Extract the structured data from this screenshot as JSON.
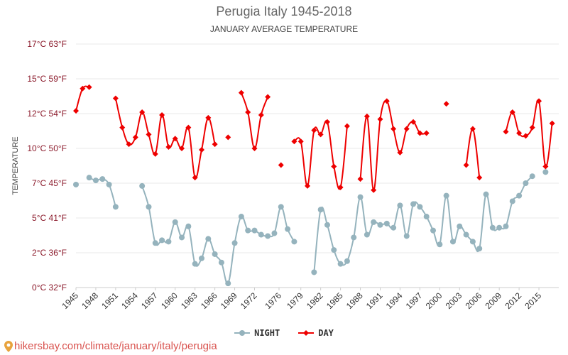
{
  "title": "Perugia Italy 1945-2018",
  "subtitle": "JANUARY AVERAGE TEMPERATURE",
  "watermark": "hikersbay.com/climate/january/italy/perugia",
  "colors": {
    "night": "#95b3bd",
    "day": "#ee0000",
    "grid": "#e8e8e8",
    "ytick": "#8b1a2b",
    "xtick": "#333333"
  },
  "chart_data": {
    "type": "line",
    "title": "Perugia Italy 1945-2018",
    "subtitle": "JANUARY AVERAGE TEMPERATURE",
    "ylabel": "TEMPERATURE",
    "xlabel": "",
    "ylim": [
      0,
      17.5
    ],
    "xlim": [
      1945,
      2018
    ],
    "legend": "bottom-center",
    "grid": true,
    "yticks": [
      {
        "value": 0,
        "label": "0°C 32°F"
      },
      {
        "value": 2.5,
        "label": "2°C 36°F"
      },
      {
        "value": 5,
        "label": "5°C 41°F"
      },
      {
        "value": 7.5,
        "label": "7°C 45°F"
      },
      {
        "value": 10,
        "label": "10°C 50°F"
      },
      {
        "value": 12.5,
        "label": "12°C 54°F"
      },
      {
        "value": 15,
        "label": "15°C 59°F"
      },
      {
        "value": 17.5,
        "label": "17°C 63°F"
      }
    ],
    "xticks": [
      {
        "value": 1945,
        "label": "1945"
      },
      {
        "value": 1948,
        "label": "1948"
      },
      {
        "value": 1951,
        "label": "1951"
      },
      {
        "value": 1954,
        "label": "1954"
      },
      {
        "value": 1957,
        "label": "1957"
      },
      {
        "value": 1960,
        "label": "1960"
      },
      {
        "value": 1963,
        "label": "1963"
      },
      {
        "value": 1966,
        "label": "1966"
      },
      {
        "value": 1969,
        "label": "1969"
      },
      {
        "value": 1972,
        "label": "1972"
      },
      {
        "value": 1975.7,
        "label": "1976"
      },
      {
        "value": 1979,
        "label": "1979"
      },
      {
        "value": 1982,
        "label": "1982"
      },
      {
        "value": 1985,
        "label": "1985"
      },
      {
        "value": 1988,
        "label": "1988"
      },
      {
        "value": 1991,
        "label": "1991"
      },
      {
        "value": 1994,
        "label": "1994"
      },
      {
        "value": 1997,
        "label": "1997"
      },
      {
        "value": 2000,
        "label": "2000"
      },
      {
        "value": 2003,
        "label": "2003"
      },
      {
        "value": 2006,
        "label": "2006"
      },
      {
        "value": 2009,
        "label": "2009"
      },
      {
        "value": 2012,
        "label": "2012"
      },
      {
        "value": 2015,
        "label": "2015"
      }
    ],
    "series": [
      {
        "name": "NIGHT",
        "color": "#95b3bd",
        "marker": "circle",
        "points": [
          [
            1945,
            7.4
          ],
          null,
          [
            1947,
            7.9
          ],
          [
            1948,
            7.7
          ],
          [
            1949,
            7.8
          ],
          [
            1950,
            7.4
          ],
          [
            1951,
            5.8
          ],
          null,
          null,
          null,
          [
            1955,
            7.3
          ],
          [
            1956,
            5.8
          ],
          [
            1957,
            3.2
          ],
          [
            1958,
            3.4
          ],
          [
            1959,
            3.3
          ],
          [
            1960,
            4.7
          ],
          [
            1961,
            3.6
          ],
          [
            1962,
            4.4
          ],
          [
            1963,
            1.7
          ],
          [
            1964,
            2.1
          ],
          [
            1965,
            3.5
          ],
          [
            1966,
            2.4
          ],
          [
            1967,
            1.8
          ],
          [
            1968,
            0.3
          ],
          [
            1969,
            3.2
          ],
          [
            1970,
            5.1
          ],
          [
            1971,
            4.1
          ],
          [
            1972,
            4.1
          ],
          [
            1973,
            3.8
          ],
          [
            1974,
            3.7
          ],
          [
            1975,
            3.9
          ],
          [
            1976,
            5.8
          ],
          [
            1977,
            4.2
          ],
          [
            1978,
            3.3
          ],
          null,
          null,
          [
            1981,
            1.1
          ],
          [
            1982,
            5.6
          ],
          [
            1983,
            4.5
          ],
          [
            1984,
            2.7
          ],
          [
            1985,
            1.7
          ],
          [
            1986,
            1.9
          ],
          [
            1987,
            3.6
          ],
          [
            1988,
            6.5
          ],
          [
            1989,
            3.8
          ],
          [
            1990,
            4.7
          ],
          [
            1991,
            4.5
          ],
          [
            1992,
            4.6
          ],
          [
            1993,
            4.3
          ],
          [
            1994,
            5.9
          ],
          [
            1995,
            3.7
          ],
          [
            1996,
            6.0
          ],
          [
            1997,
            5.8
          ],
          [
            1998,
            5.1
          ],
          [
            1999,
            4.1
          ],
          [
            2000,
            3.1
          ],
          [
            2001,
            6.6
          ],
          [
            2002,
            3.3
          ],
          [
            2003,
            4.4
          ],
          [
            2004,
            3.8
          ],
          [
            2005,
            3.3
          ],
          [
            2006,
            2.8
          ],
          [
            2007,
            6.7
          ],
          [
            2008,
            4.3
          ],
          [
            2009,
            4.3
          ],
          [
            2010,
            4.4
          ],
          [
            2011,
            6.2
          ],
          [
            2012,
            6.6
          ],
          [
            2013,
            7.5
          ],
          [
            2014,
            8.0
          ],
          null,
          [
            2016,
            8.3
          ]
        ]
      },
      {
        "name": "DAY",
        "color": "#ee0000",
        "marker": "diamond",
        "points": [
          [
            1945,
            12.7
          ],
          [
            1946,
            14.3
          ],
          [
            1947,
            14.4
          ],
          null,
          null,
          null,
          [
            1951,
            13.6
          ],
          [
            1952,
            11.5
          ],
          [
            1953,
            10.3
          ],
          [
            1954,
            10.8
          ],
          [
            1955,
            12.6
          ],
          [
            1956,
            11.0
          ],
          [
            1957,
            9.6
          ],
          [
            1958,
            12.4
          ],
          [
            1959,
            10.1
          ],
          [
            1960,
            10.7
          ],
          [
            1961,
            10.0
          ],
          [
            1962,
            11.5
          ],
          [
            1963,
            7.9
          ],
          [
            1964,
            9.9
          ],
          [
            1965,
            12.2
          ],
          [
            1966,
            10.3
          ],
          null,
          [
            1968,
            10.8
          ],
          null,
          [
            1970,
            14.0
          ],
          [
            1971,
            12.6
          ],
          [
            1972,
            10.0
          ],
          [
            1973,
            12.4
          ],
          [
            1974,
            13.7
          ],
          null,
          [
            1976,
            8.8
          ],
          null,
          [
            1978,
            10.5
          ],
          [
            1979,
            10.5
          ],
          [
            1980,
            7.3
          ],
          [
            1981,
            11.3
          ],
          [
            1982,
            11.0
          ],
          [
            1983,
            11.9
          ],
          [
            1984,
            8.7
          ],
          [
            1985,
            7.2
          ],
          [
            1986,
            11.6
          ],
          null,
          [
            1988,
            7.8
          ],
          [
            1989,
            12.3
          ],
          [
            1990,
            7.0
          ],
          [
            1991,
            12.1
          ],
          [
            1992,
            13.4
          ],
          [
            1993,
            11.4
          ],
          [
            1994,
            9.7
          ],
          [
            1995,
            11.4
          ],
          [
            1996,
            11.9
          ],
          [
            1997,
            11.1
          ],
          [
            1998,
            11.1
          ],
          null,
          null,
          [
            2001,
            13.2
          ],
          null,
          null,
          [
            2004,
            8.8
          ],
          [
            2005,
            11.4
          ],
          [
            2006,
            7.9
          ],
          null,
          null,
          null,
          [
            2010,
            11.2
          ],
          [
            2011,
            12.6
          ],
          [
            2012,
            11.1
          ],
          [
            2013,
            10.9
          ],
          [
            2014,
            11.5
          ],
          [
            2015,
            13.4
          ],
          [
            2016,
            8.7
          ],
          [
            2017,
            11.8
          ]
        ]
      }
    ]
  }
}
